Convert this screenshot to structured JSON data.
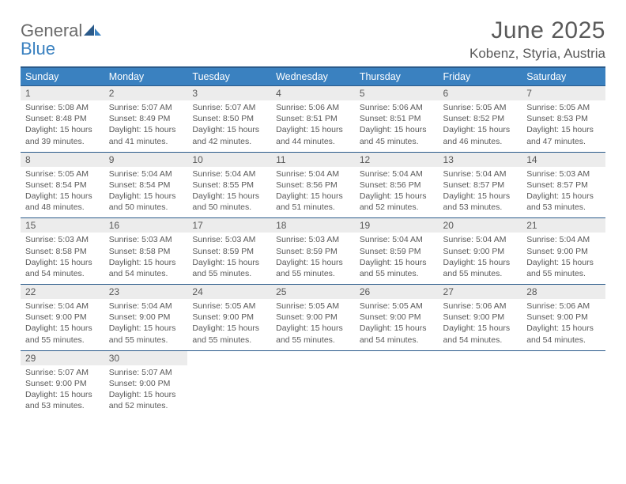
{
  "brand": {
    "general": "General",
    "blue": "Blue"
  },
  "title": "June 2025",
  "location": "Kobenz, Styria, Austria",
  "colors": {
    "header_bg": "#3a81c0",
    "header_border": "#2a5a8a",
    "daynum_bg": "#ececec",
    "text": "#595959",
    "page_bg": "#ffffff"
  },
  "fonts": {
    "base_family": "Arial",
    "title_size": 30,
    "location_size": 17,
    "weekday_size": 12.5,
    "daynum_size": 12,
    "body_size": 10.5
  },
  "weekdays": [
    "Sunday",
    "Monday",
    "Tuesday",
    "Wednesday",
    "Thursday",
    "Friday",
    "Saturday"
  ],
  "weeks": [
    {
      "nums": [
        "1",
        "2",
        "3",
        "4",
        "5",
        "6",
        "7"
      ],
      "cells": [
        {
          "sr": "Sunrise: 5:08 AM",
          "ss": "Sunset: 8:48 PM",
          "d1": "Daylight: 15 hours",
          "d2": "and 39 minutes."
        },
        {
          "sr": "Sunrise: 5:07 AM",
          "ss": "Sunset: 8:49 PM",
          "d1": "Daylight: 15 hours",
          "d2": "and 41 minutes."
        },
        {
          "sr": "Sunrise: 5:07 AM",
          "ss": "Sunset: 8:50 PM",
          "d1": "Daylight: 15 hours",
          "d2": "and 42 minutes."
        },
        {
          "sr": "Sunrise: 5:06 AM",
          "ss": "Sunset: 8:51 PM",
          "d1": "Daylight: 15 hours",
          "d2": "and 44 minutes."
        },
        {
          "sr": "Sunrise: 5:06 AM",
          "ss": "Sunset: 8:51 PM",
          "d1": "Daylight: 15 hours",
          "d2": "and 45 minutes."
        },
        {
          "sr": "Sunrise: 5:05 AM",
          "ss": "Sunset: 8:52 PM",
          "d1": "Daylight: 15 hours",
          "d2": "and 46 minutes."
        },
        {
          "sr": "Sunrise: 5:05 AM",
          "ss": "Sunset: 8:53 PM",
          "d1": "Daylight: 15 hours",
          "d2": "and 47 minutes."
        }
      ]
    },
    {
      "nums": [
        "8",
        "9",
        "10",
        "11",
        "12",
        "13",
        "14"
      ],
      "cells": [
        {
          "sr": "Sunrise: 5:05 AM",
          "ss": "Sunset: 8:54 PM",
          "d1": "Daylight: 15 hours",
          "d2": "and 48 minutes."
        },
        {
          "sr": "Sunrise: 5:04 AM",
          "ss": "Sunset: 8:54 PM",
          "d1": "Daylight: 15 hours",
          "d2": "and 50 minutes."
        },
        {
          "sr": "Sunrise: 5:04 AM",
          "ss": "Sunset: 8:55 PM",
          "d1": "Daylight: 15 hours",
          "d2": "and 50 minutes."
        },
        {
          "sr": "Sunrise: 5:04 AM",
          "ss": "Sunset: 8:56 PM",
          "d1": "Daylight: 15 hours",
          "d2": "and 51 minutes."
        },
        {
          "sr": "Sunrise: 5:04 AM",
          "ss": "Sunset: 8:56 PM",
          "d1": "Daylight: 15 hours",
          "d2": "and 52 minutes."
        },
        {
          "sr": "Sunrise: 5:04 AM",
          "ss": "Sunset: 8:57 PM",
          "d1": "Daylight: 15 hours",
          "d2": "and 53 minutes."
        },
        {
          "sr": "Sunrise: 5:03 AM",
          "ss": "Sunset: 8:57 PM",
          "d1": "Daylight: 15 hours",
          "d2": "and 53 minutes."
        }
      ]
    },
    {
      "nums": [
        "15",
        "16",
        "17",
        "18",
        "19",
        "20",
        "21"
      ],
      "cells": [
        {
          "sr": "Sunrise: 5:03 AM",
          "ss": "Sunset: 8:58 PM",
          "d1": "Daylight: 15 hours",
          "d2": "and 54 minutes."
        },
        {
          "sr": "Sunrise: 5:03 AM",
          "ss": "Sunset: 8:58 PM",
          "d1": "Daylight: 15 hours",
          "d2": "and 54 minutes."
        },
        {
          "sr": "Sunrise: 5:03 AM",
          "ss": "Sunset: 8:59 PM",
          "d1": "Daylight: 15 hours",
          "d2": "and 55 minutes."
        },
        {
          "sr": "Sunrise: 5:03 AM",
          "ss": "Sunset: 8:59 PM",
          "d1": "Daylight: 15 hours",
          "d2": "and 55 minutes."
        },
        {
          "sr": "Sunrise: 5:04 AM",
          "ss": "Sunset: 8:59 PM",
          "d1": "Daylight: 15 hours",
          "d2": "and 55 minutes."
        },
        {
          "sr": "Sunrise: 5:04 AM",
          "ss": "Sunset: 9:00 PM",
          "d1": "Daylight: 15 hours",
          "d2": "and 55 minutes."
        },
        {
          "sr": "Sunrise: 5:04 AM",
          "ss": "Sunset: 9:00 PM",
          "d1": "Daylight: 15 hours",
          "d2": "and 55 minutes."
        }
      ]
    },
    {
      "nums": [
        "22",
        "23",
        "24",
        "25",
        "26",
        "27",
        "28"
      ],
      "cells": [
        {
          "sr": "Sunrise: 5:04 AM",
          "ss": "Sunset: 9:00 PM",
          "d1": "Daylight: 15 hours",
          "d2": "and 55 minutes."
        },
        {
          "sr": "Sunrise: 5:04 AM",
          "ss": "Sunset: 9:00 PM",
          "d1": "Daylight: 15 hours",
          "d2": "and 55 minutes."
        },
        {
          "sr": "Sunrise: 5:05 AM",
          "ss": "Sunset: 9:00 PM",
          "d1": "Daylight: 15 hours",
          "d2": "and 55 minutes."
        },
        {
          "sr": "Sunrise: 5:05 AM",
          "ss": "Sunset: 9:00 PM",
          "d1": "Daylight: 15 hours",
          "d2": "and 55 minutes."
        },
        {
          "sr": "Sunrise: 5:05 AM",
          "ss": "Sunset: 9:00 PM",
          "d1": "Daylight: 15 hours",
          "d2": "and 54 minutes."
        },
        {
          "sr": "Sunrise: 5:06 AM",
          "ss": "Sunset: 9:00 PM",
          "d1": "Daylight: 15 hours",
          "d2": "and 54 minutes."
        },
        {
          "sr": "Sunrise: 5:06 AM",
          "ss": "Sunset: 9:00 PM",
          "d1": "Daylight: 15 hours",
          "d2": "and 54 minutes."
        }
      ]
    },
    {
      "nums": [
        "29",
        "30",
        "",
        "",
        "",
        "",
        ""
      ],
      "cells": [
        {
          "sr": "Sunrise: 5:07 AM",
          "ss": "Sunset: 9:00 PM",
          "d1": "Daylight: 15 hours",
          "d2": "and 53 minutes."
        },
        {
          "sr": "Sunrise: 5:07 AM",
          "ss": "Sunset: 9:00 PM",
          "d1": "Daylight: 15 hours",
          "d2": "and 52 minutes."
        },
        null,
        null,
        null,
        null,
        null
      ]
    }
  ]
}
